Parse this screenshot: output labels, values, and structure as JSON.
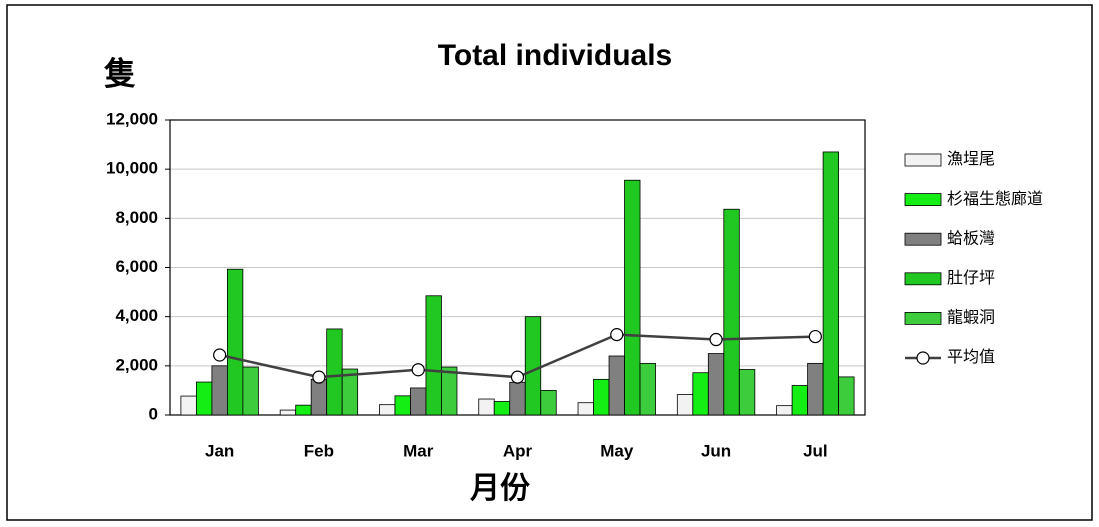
{
  "chart_data": {
    "type": "bar",
    "title": "Total individuals",
    "y_label": "隻",
    "x_label": "月份",
    "categories": [
      "Jan",
      "Feb",
      "Mar",
      "Apr",
      "May",
      "Jun",
      "Jul"
    ],
    "series": [
      {
        "name": "漁埕尾",
        "color": "#f2f2f2",
        "values": [
          770,
          200,
          420,
          650,
          500,
          830,
          380
        ]
      },
      {
        "name": "杉福生態廊道",
        "color": "#14ee14",
        "values": [
          1340,
          400,
          780,
          550,
          1450,
          1720,
          1200
        ]
      },
      {
        "name": "蛤板灣",
        "color": "#808080",
        "values": [
          2000,
          1450,
          1100,
          1330,
          2400,
          2500,
          2100
        ]
      },
      {
        "name": "肚仔坪",
        "color": "#22c822",
        "values": [
          5930,
          3500,
          4850,
          4000,
          9550,
          8370,
          10700
        ]
      },
      {
        "name": "龍蝦洞",
        "color": "#3ccc3c",
        "values": [
          1950,
          1870,
          1950,
          1000,
          2100,
          1850,
          1550
        ]
      },
      {
        "name": "平均值",
        "type": "line",
        "color": "#404040",
        "values": [
          2440,
          1540,
          1840,
          1540,
          3270,
          3070,
          3190
        ]
      }
    ],
    "ylim": [
      0,
      12000
    ],
    "yticks": [
      0,
      {
        "value": 2000,
        "label": "2,000"
      },
      {
        "value": 4000,
        "label": "4,000"
      },
      {
        "value": 6000,
        "label": "6,000"
      },
      {
        "value": 8000,
        "label": "8,000"
      },
      {
        "value": 10000,
        "label": "10,000"
      },
      {
        "value": 12000,
        "label": "12,000"
      }
    ],
    "grid": true,
    "legend": "right"
  }
}
